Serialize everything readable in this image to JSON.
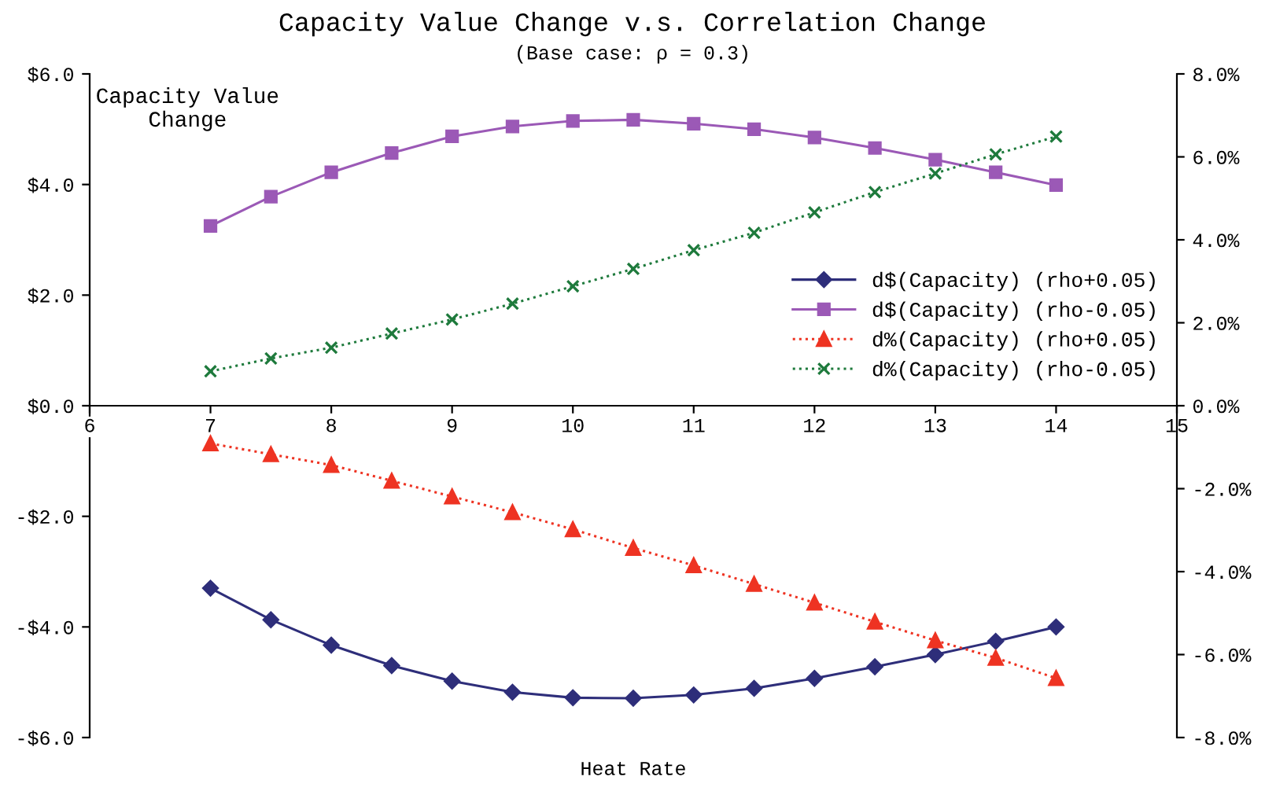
{
  "chart_data": {
    "type": "line",
    "title": "Capacity Value Change v.s. Correlation Change",
    "subtitle": "(Base case: ρ = 0.3)",
    "xlabel": "Heat Rate",
    "ylabel": "Capacity Value\nChange",
    "x": [
      7,
      7.5,
      8,
      8.5,
      9,
      9.5,
      10,
      10.5,
      11,
      11.5,
      12,
      12.5,
      13,
      13.5,
      14
    ],
    "series": [
      {
        "name": "d$(Capacity) (rho+0.05)",
        "color": "#2e2e7a",
        "marker": "diamond",
        "line_style": "solid",
        "values": [
          -3.3,
          -3.87,
          -4.33,
          -4.7,
          -4.98,
          -5.18,
          -5.28,
          -5.29,
          -5.23,
          -5.11,
          -4.93,
          -4.72,
          -4.5,
          -4.26,
          -4.0
        ]
      },
      {
        "name": "d$(Capacity) (rho-0.05)",
        "color": "#9b59b6",
        "marker": "square",
        "line_style": "solid",
        "values": [
          3.25,
          3.78,
          4.22,
          4.57,
          4.87,
          5.05,
          5.15,
          5.17,
          5.1,
          5.0,
          4.85,
          4.66,
          4.45,
          4.22,
          3.99
        ]
      },
      {
        "name": "d%(Capacity) (rho+0.05)",
        "color": "#ee3322",
        "marker": "triangle",
        "line_style": "dotted",
        "axis": "y2",
        "values": [
          -0.91,
          -1.17,
          -1.43,
          -1.81,
          -2.19,
          -2.57,
          -2.98,
          -3.43,
          -3.85,
          -4.3,
          -4.75,
          -5.21,
          -5.66,
          -6.08,
          -6.57
        ]
      },
      {
        "name": "d%(Capacity) (rho-0.05)",
        "color": "#1e7a3c",
        "marker": "cross",
        "line_style": "dotted",
        "axis": "y2",
        "values": [
          0.83,
          1.14,
          1.4,
          1.74,
          2.08,
          2.46,
          2.88,
          3.3,
          3.75,
          4.17,
          4.66,
          5.15,
          5.6,
          6.06,
          6.49
        ]
      }
    ],
    "xlim": [
      6,
      15
    ],
    "xticks": [
      6,
      7,
      8,
      9,
      10,
      11,
      12,
      13,
      14,
      15
    ],
    "ylim": [
      -6,
      6
    ],
    "yticks": [
      {
        "value": -6,
        "label": "-$6.0"
      },
      {
        "value": -4,
        "label": "-$4.0"
      },
      {
        "value": -2,
        "label": "-$2.0"
      },
      {
        "value": 0,
        "label": "$0.0"
      },
      {
        "value": 2,
        "label": "$2.0"
      },
      {
        "value": 4,
        "label": "$4.0"
      },
      {
        "value": 6,
        "label": "$6.0"
      }
    ],
    "y2lim": [
      -8,
      8
    ],
    "y2ticks": [
      {
        "value": -8,
        "label": "-8.0%"
      },
      {
        "value": -6,
        "label": "-6.0%"
      },
      {
        "value": -4,
        "label": "-4.0%"
      },
      {
        "value": -2,
        "label": "-2.0%"
      },
      {
        "value": 0,
        "label": "0.0%"
      },
      {
        "value": 2,
        "label": "2.0%"
      },
      {
        "value": 4,
        "label": "4.0%"
      },
      {
        "value": 6,
        "label": "6.0%"
      },
      {
        "value": 8,
        "label": "8.0%"
      }
    ],
    "grid": false,
    "legend": "right"
  }
}
